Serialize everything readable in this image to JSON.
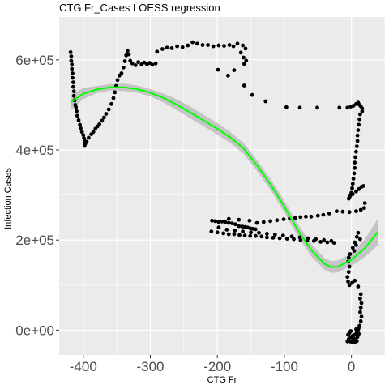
{
  "chart_data": {
    "type": "scatter",
    "title": "CTG Fr_Cases LOESS regression",
    "xlabel": "CTG Fr",
    "ylabel": "Infection Cases",
    "xlim": [
      -436,
      50
    ],
    "ylim": [
      -55000,
      695000
    ],
    "x_ticks": [
      -400,
      -300,
      -200,
      -100,
      0
    ],
    "x_tick_labels": [
      "-400",
      "-300",
      "-200",
      "-100",
      "0"
    ],
    "y_ticks": [
      0,
      200000,
      400000,
      600000
    ],
    "y_tick_labels": [
      "0e+00",
      "2e+05",
      "4e+05",
      "6e+05"
    ],
    "grid": true,
    "legend": "none",
    "colors": {
      "panel_background": "#ebebeb",
      "grid": "#ffffff",
      "points": "#000000",
      "loess_line": "#00ff00",
      "confidence_band": "#bdbdbd"
    },
    "points": [
      [
        -419,
        617000
      ],
      [
        -418,
        608000
      ],
      [
        -418,
        598000
      ],
      [
        -417,
        590000
      ],
      [
        -417,
        580000
      ],
      [
        -416,
        570000
      ],
      [
        -416,
        560000
      ],
      [
        -415,
        550000
      ],
      [
        -415,
        540000
      ],
      [
        -414,
        530000
      ],
      [
        -414,
        520000
      ],
      [
        -413,
        510000
      ],
      [
        -412,
        500000
      ],
      [
        -411,
        495000
      ],
      [
        -410,
        486000
      ],
      [
        -409,
        476000
      ],
      [
        -407,
        466000
      ],
      [
        -405,
        456000
      ],
      [
        -404,
        448000
      ],
      [
        -402,
        440000
      ],
      [
        -400,
        433000
      ],
      [
        -399,
        426000
      ],
      [
        -398,
        420000
      ],
      [
        -397,
        414000
      ],
      [
        -398,
        409000
      ],
      [
        -395,
        418000
      ],
      [
        -392,
        427000
      ],
      [
        -388,
        435000
      ],
      [
        -385,
        440000
      ],
      [
        -382,
        447000
      ],
      [
        -379,
        452000
      ],
      [
        -376,
        457000
      ],
      [
        -372,
        465000
      ],
      [
        -369,
        472000
      ],
      [
        -366,
        480000
      ],
      [
        -362,
        490000
      ],
      [
        -358,
        502000
      ],
      [
        -355,
        515000
      ],
      [
        -353,
        528000
      ],
      [
        -351,
        542000
      ],
      [
        -349,
        555000
      ],
      [
        -346,
        565000
      ],
      [
        -343,
        570000
      ],
      [
        -340,
        583000
      ],
      [
        -338,
        597000
      ],
      [
        -336,
        610000
      ],
      [
        -334,
        620000
      ],
      [
        -332,
        612000
      ],
      [
        -330,
        598000
      ],
      [
        -327,
        592000
      ],
      [
        -322,
        588000
      ],
      [
        -318,
        595000
      ],
      [
        -313,
        590000
      ],
      [
        -309,
        594000
      ],
      [
        -305,
        590000
      ],
      [
        -301,
        593000
      ],
      [
        -297,
        589000
      ],
      [
        -292,
        592000
      ],
      [
        -290,
        618000
      ],
      [
        -282,
        624000
      ],
      [
        -275,
        627000
      ],
      [
        -268,
        626000
      ],
      [
        -260,
        630000
      ],
      [
        -252,
        628000
      ],
      [
        -244,
        632000
      ],
      [
        -237,
        639000
      ],
      [
        -230,
        636000
      ],
      [
        -222,
        633000
      ],
      [
        -214,
        633000
      ],
      [
        -206,
        630000
      ],
      [
        -198,
        632000
      ],
      [
        -190,
        631000
      ],
      [
        -182,
        633000
      ],
      [
        -176,
        630000
      ],
      [
        -170,
        636000
      ],
      [
        -162,
        632000
      ],
      [
        -158,
        625000
      ],
      [
        -165,
        616000
      ],
      [
        -161,
        605000
      ],
      [
        -157,
        598000
      ],
      [
        -160,
        591000
      ],
      [
        -175,
        577000
      ],
      [
        -199,
        578000
      ],
      [
        -184,
        565000
      ],
      [
        -160,
        543000
      ],
      [
        -148,
        522000
      ],
      [
        -128,
        508000
      ],
      [
        -97,
        495000
      ],
      [
        -77,
        494000
      ],
      [
        -51,
        494000
      ],
      [
        -18,
        494000
      ],
      [
        -6,
        494000
      ],
      [
        -1,
        496000
      ],
      [
        3,
        498000
      ],
      [
        7,
        502000
      ],
      [
        10,
        505000
      ],
      [
        12,
        500000
      ],
      [
        14,
        497000
      ],
      [
        16,
        492000
      ],
      [
        16,
        486000
      ],
      [
        13,
        479000
      ],
      [
        12,
        468000
      ],
      [
        11,
        456000
      ],
      [
        10,
        444000
      ],
      [
        9,
        432000
      ],
      [
        9,
        420000
      ],
      [
        8,
        408000
      ],
      [
        7,
        396000
      ],
      [
        6,
        384000
      ],
      [
        5,
        372000
      ],
      [
        5,
        360000
      ],
      [
        4,
        348000
      ],
      [
        3,
        336000
      ],
      [
        2,
        325000
      ],
      [
        1,
        315000
      ],
      [
        0,
        305000
      ],
      [
        -2,
        298000
      ],
      [
        -4,
        292000
      ],
      [
        -3,
        295000
      ],
      [
        2,
        302000
      ],
      [
        7,
        308000
      ],
      [
        11,
        313000
      ],
      [
        15,
        318000
      ],
      [
        18,
        320000
      ],
      [
        20,
        282000
      ],
      [
        19,
        271000
      ],
      [
        14,
        267000
      ],
      [
        7,
        264000
      ],
      [
        -3,
        262000
      ],
      [
        -13,
        263000
      ],
      [
        -22,
        264000
      ],
      [
        -33,
        259000
      ],
      [
        -42,
        256000
      ],
      [
        -50,
        254000
      ],
      [
        -60,
        252000
      ],
      [
        -68,
        252000
      ],
      [
        -76,
        251000
      ],
      [
        -84,
        249000
      ],
      [
        -92,
        248000
      ],
      [
        -101,
        246000
      ],
      [
        -111,
        244000
      ],
      [
        -121,
        242000
      ],
      [
        -131,
        240000
      ],
      [
        -141,
        238000
      ],
      [
        -208,
        243000
      ],
      [
        -203,
        242000
      ],
      [
        -198,
        240000
      ],
      [
        -193,
        241000
      ],
      [
        -188,
        240000
      ],
      [
        -183,
        238000
      ],
      [
        -178,
        237000
      ],
      [
        -173,
        235000
      ],
      [
        -168,
        231000
      ],
      [
        -163,
        230000
      ],
      [
        -159,
        229000
      ],
      [
        -155,
        228000
      ],
      [
        -151,
        226000
      ],
      [
        -147,
        225000
      ],
      [
        -143,
        224000
      ],
      [
        -183,
        247000
      ],
      [
        -168,
        245000
      ],
      [
        -152,
        243000
      ],
      [
        -198,
        228000
      ],
      [
        -186,
        223000
      ],
      [
        -174,
        221000
      ],
      [
        -162,
        219000
      ],
      [
        -150,
        217000
      ],
      [
        -138,
        216000
      ],
      [
        -126,
        214000
      ],
      [
        -114,
        212000
      ],
      [
        -102,
        210000
      ],
      [
        -89,
        208000
      ],
      [
        -77,
        206000
      ],
      [
        -65,
        204000
      ],
      [
        -53,
        202000
      ],
      [
        -41,
        200000
      ],
      [
        -30,
        198000
      ],
      [
        -209,
        219000
      ],
      [
        -200,
        217000
      ],
      [
        -191,
        215000
      ],
      [
        -183,
        213000
      ],
      [
        -175,
        213000
      ],
      [
        -167,
        211000
      ],
      [
        -159,
        210000
      ],
      [
        -151,
        209000
      ],
      [
        -143,
        209000
      ],
      [
        -134,
        208000
      ],
      [
        -126,
        206000
      ],
      [
        -117,
        205000
      ],
      [
        -107,
        204000
      ],
      [
        -96,
        203000
      ],
      [
        -86,
        202000
      ],
      [
        -76,
        200000
      ],
      [
        -66,
        199000
      ],
      [
        -56,
        198000
      ],
      [
        -46,
        196000
      ],
      [
        -36,
        195000
      ],
      [
        -26,
        194000
      ],
      [
        10,
        216000
      ],
      [
        8,
        207000
      ],
      [
        13,
        202000
      ],
      [
        5,
        195000
      ],
      [
        7,
        189000
      ],
      [
        2,
        183000
      ],
      [
        4,
        176000
      ],
      [
        -2,
        169000
      ],
      [
        -4,
        161000
      ],
      [
        -5,
        152000
      ],
      [
        -3,
        141000
      ],
      [
        -4,
        129000
      ],
      [
        -6,
        118000
      ],
      [
        -5,
        108000
      ],
      [
        -3,
        100000
      ],
      [
        1,
        105000
      ],
      [
        5,
        110000
      ],
      [
        10,
        97000
      ],
      [
        14,
        80000
      ],
      [
        13,
        70000
      ],
      [
        15,
        60000
      ],
      [
        14,
        50000
      ],
      [
        13,
        40000
      ],
      [
        15,
        30000
      ],
      [
        14,
        20000
      ],
      [
        12,
        10000
      ],
      [
        11,
        5000
      ],
      [
        10,
        0
      ],
      [
        8,
        -5000
      ],
      [
        5,
        -10000
      ],
      [
        2,
        -12000
      ],
      [
        -1,
        -15000
      ],
      [
        -4,
        -20000
      ],
      [
        -6,
        -25000
      ],
      [
        -2,
        -25000
      ],
      [
        2,
        -22000
      ],
      [
        6,
        -20000
      ],
      [
        9,
        -15000
      ],
      [
        11,
        -8000
      ],
      [
        -1,
        -2000
      ],
      [
        -3,
        -6000
      ],
      [
        3,
        -18000
      ],
      [
        7,
        2000
      ],
      [
        -5,
        -10000
      ],
      [
        1,
        -26000
      ],
      [
        5,
        -27000
      ],
      [
        8,
        -24000
      ]
    ],
    "loess_fit": {
      "x": [
        -419,
        -400,
        -380,
        -360,
        -340,
        -320,
        -300,
        -280,
        -260,
        -240,
        -220,
        -200,
        -180,
        -160,
        -140,
        -120,
        -100,
        -80,
        -60,
        -40,
        -30,
        -20,
        0,
        20,
        40
      ],
      "y": [
        505000,
        525000,
        534000,
        539000,
        539000,
        535000,
        527000,
        515000,
        500000,
        483000,
        465000,
        447000,
        427000,
        402000,
        364000,
        322000,
        274000,
        222000,
        178000,
        147000,
        140000,
        141000,
        156000,
        182000,
        219000
      ],
      "lower": [
        488000,
        513000,
        526000,
        532000,
        531000,
        527000,
        519000,
        505000,
        488000,
        470000,
        452000,
        434000,
        415000,
        390000,
        352000,
        310000,
        261000,
        208000,
        164000,
        134000,
        127000,
        128000,
        143000,
        162000,
        189000
      ],
      "upper": [
        523000,
        537000,
        542000,
        546000,
        547000,
        543000,
        535000,
        525000,
        512000,
        496000,
        478000,
        460000,
        439000,
        414000,
        376000,
        334000,
        287000,
        236000,
        192000,
        160000,
        153000,
        155000,
        170000,
        202000,
        249000
      ]
    }
  }
}
